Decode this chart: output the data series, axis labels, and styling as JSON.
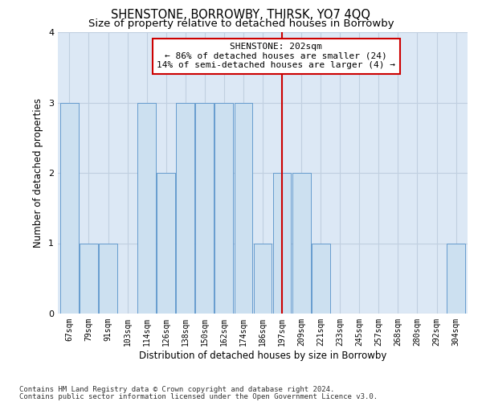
{
  "title": "SHENSTONE, BORROWBY, THIRSK, YO7 4QQ",
  "subtitle": "Size of property relative to detached houses in Borrowby",
  "xlabel": "Distribution of detached houses by size in Borrowby",
  "ylabel": "Number of detached properties",
  "categories": [
    "67sqm",
    "79sqm",
    "91sqm",
    "103sqm",
    "114sqm",
    "126sqm",
    "138sqm",
    "150sqm",
    "162sqm",
    "174sqm",
    "186sqm",
    "197sqm",
    "209sqm",
    "221sqm",
    "233sqm",
    "245sqm",
    "257sqm",
    "268sqm",
    "280sqm",
    "292sqm",
    "304sqm"
  ],
  "values": [
    3,
    1,
    1,
    0,
    3,
    2,
    3,
    3,
    3,
    3,
    1,
    2,
    2,
    1,
    0,
    0,
    0,
    0,
    0,
    0,
    1
  ],
  "bar_color": "#cce0f0",
  "bar_edge_color": "#5591c9",
  "highlight_index": 11,
  "highlight_line_color": "#cc0000",
  "annotation_line1": "SHENSTONE: 202sqm",
  "annotation_line2": "← 86% of detached houses are smaller (24)",
  "annotation_line3": "14% of semi-detached houses are larger (4) →",
  "annotation_box_color": "#ffffff",
  "annotation_box_edge_color": "#cc0000",
  "ylim": [
    0,
    4
  ],
  "yticks": [
    0,
    1,
    2,
    3,
    4
  ],
  "footer_line1": "Contains HM Land Registry data © Crown copyright and database right 2024.",
  "footer_line2": "Contains public sector information licensed under the Open Government Licence v3.0.",
  "bg_color": "#ffffff",
  "plot_bg_color": "#dce8f5",
  "grid_color": "#c0cfe0",
  "title_fontsize": 10.5,
  "subtitle_fontsize": 9.5,
  "axis_label_fontsize": 8.5,
  "tick_fontsize": 7,
  "annotation_fontsize": 8,
  "footer_fontsize": 6.5
}
